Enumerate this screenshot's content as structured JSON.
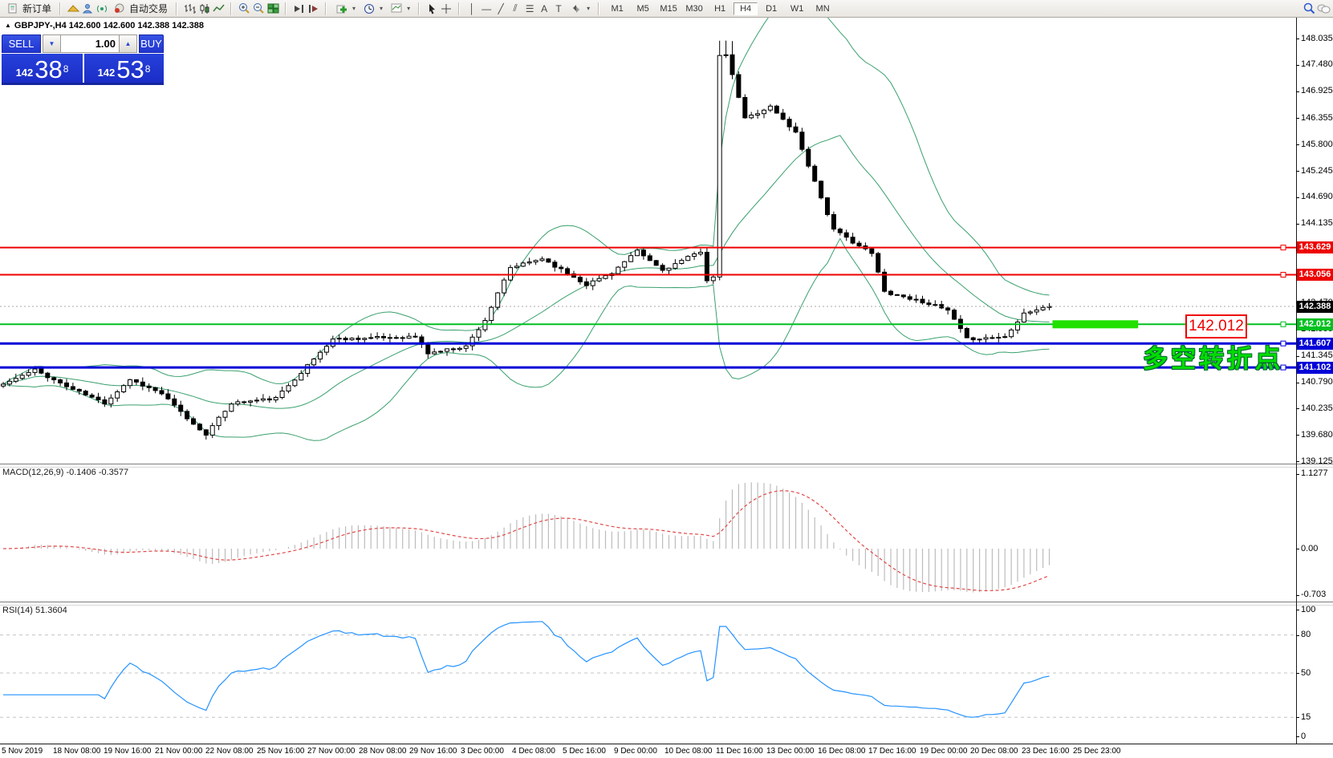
{
  "toolbar": {
    "new_order_label": "新订单",
    "auto_trading_label": "自动交易",
    "timeframes": [
      "M1",
      "M5",
      "M15",
      "M30",
      "H1",
      "H4",
      "D1",
      "W1",
      "MN"
    ],
    "active_timeframe": "H4"
  },
  "chart_header": {
    "marker": "▲",
    "symbol_line": "GBPJPY-,H4  142.600 142.600 142.388 142.388"
  },
  "trade_panel": {
    "sell_label": "SELL",
    "buy_label": "BUY",
    "volume": "1.00",
    "sell_prefix": "142",
    "sell_big": "38",
    "sell_sup": "8",
    "buy_prefix": "142",
    "buy_big": "53",
    "buy_sup": "8"
  },
  "indicators": {
    "macd_label": "MACD(12,26,9) -0.1406 -0.3577",
    "rsi_label": "RSI(14) 51.3604"
  },
  "annotations": {
    "price_box": "142.012",
    "cn_note": "多空转折点"
  },
  "chart_data": {
    "type": "candlestick",
    "symbol": "GBPJPY-",
    "timeframe": "H4",
    "ohlc_title": {
      "open": "142.600",
      "high": "142.600",
      "low": "142.388",
      "close": "142.388"
    },
    "bid": "142.388",
    "ask": "142.538",
    "current_price": 142.388,
    "price_axis_ticks": [
      148.035,
      147.48,
      146.925,
      146.355,
      145.8,
      145.245,
      144.69,
      144.135,
      143.58,
      143.025,
      142.47,
      141.9,
      141.345,
      140.79,
      140.235,
      139.68,
      139.125
    ],
    "hlines": [
      {
        "price": 143.629,
        "color": "#ee0000",
        "width": 2,
        "label": "143.629"
      },
      {
        "price": 143.056,
        "color": "#ee0000",
        "width": 2,
        "label": "143.056"
      },
      {
        "price": 142.012,
        "color": "#00c020",
        "width": 2,
        "label": "142.012"
      },
      {
        "price": 141.607,
        "color": "#0000d8",
        "width": 3,
        "label": "141.607"
      },
      {
        "price": 141.102,
        "color": "#0000d8",
        "width": 3,
        "label": "141.102"
      }
    ],
    "current_price_line": {
      "price": 142.388,
      "style": "dotted",
      "color": "#a8a8a8",
      "label": "142.388",
      "tag_color": "#000000"
    },
    "highlight": {
      "price": 142.012,
      "from_index": 165.5,
      "to_index": 179,
      "color": "#22e000",
      "thickness": 10
    },
    "candles": {
      "count": 166,
      "seed": 11,
      "bull_fill": "#ffffff",
      "bear_fill": "#000000",
      "outline": "#000000",
      "waypoints": [
        [
          0,
          140.75
        ],
        [
          5,
          141.05
        ],
        [
          10,
          140.7
        ],
        [
          16,
          140.35
        ],
        [
          20,
          140.85
        ],
        [
          25,
          140.55
        ],
        [
          30,
          139.9
        ],
        [
          32,
          139.7
        ],
        [
          36,
          140.35
        ],
        [
          43,
          140.45
        ],
        [
          47,
          141.0
        ],
        [
          52,
          141.7
        ],
        [
          65,
          141.75
        ],
        [
          67,
          141.4
        ],
        [
          73,
          141.55
        ],
        [
          76,
          142.1
        ],
        [
          80,
          143.2
        ],
        [
          85,
          143.4
        ],
        [
          92,
          142.85
        ],
        [
          96,
          143.1
        ],
        [
          100,
          143.55
        ],
        [
          104,
          143.15
        ],
        [
          110,
          143.55
        ],
        [
          111,
          142.95
        ],
        [
          112,
          143.0
        ],
        [
          113,
          147.65
        ],
        [
          114,
          147.7
        ],
        [
          117,
          146.35
        ],
        [
          121,
          146.6
        ],
        [
          125,
          146.05
        ],
        [
          131,
          144.0
        ],
        [
          137,
          143.5
        ],
        [
          139,
          142.7
        ],
        [
          146,
          142.45
        ],
        [
          149,
          142.3
        ],
        [
          152,
          141.7
        ],
        [
          158,
          141.75
        ],
        [
          161,
          142.25
        ],
        [
          165,
          142.388
        ]
      ]
    },
    "bollinger": {
      "period": 20,
      "deviation": 2,
      "color": "#3aa06e"
    },
    "macd": {
      "fast": 12,
      "slow": 26,
      "signal": 9,
      "value": -0.1406,
      "signal_value": -0.3577,
      "axis_max": 1.1277,
      "axis_mid": 0.0,
      "axis_min": -0.703,
      "histogram_color": "#bcbcbc",
      "signal_color": "#e04848"
    },
    "rsi": {
      "period": 14,
      "value": 51.3604,
      "axis_max": 100,
      "axis_min": 0,
      "levels": [
        80,
        50,
        15
      ],
      "color": "#2492ff"
    },
    "x_axis_labels": [
      "5 Nov 2019",
      "18 Nov 08:00",
      "19 Nov 16:00",
      "21 Nov 00:00",
      "22 Nov 08:00",
      "25 Nov 16:00",
      "27 Nov 00:00",
      "28 Nov 08:00",
      "29 Nov 16:00",
      "3 Dec 00:00",
      "4 Dec 08:00",
      "5 Dec 16:00",
      "9 Dec 00:00",
      "10 Dec 08:00",
      "11 Dec 16:00",
      "13 Dec 00:00",
      "16 Dec 08:00",
      "17 Dec 16:00",
      "19 Dec 00:00",
      "20 Dec 08:00",
      "23 Dec 16:00",
      "25 Dec 23:00"
    ]
  }
}
